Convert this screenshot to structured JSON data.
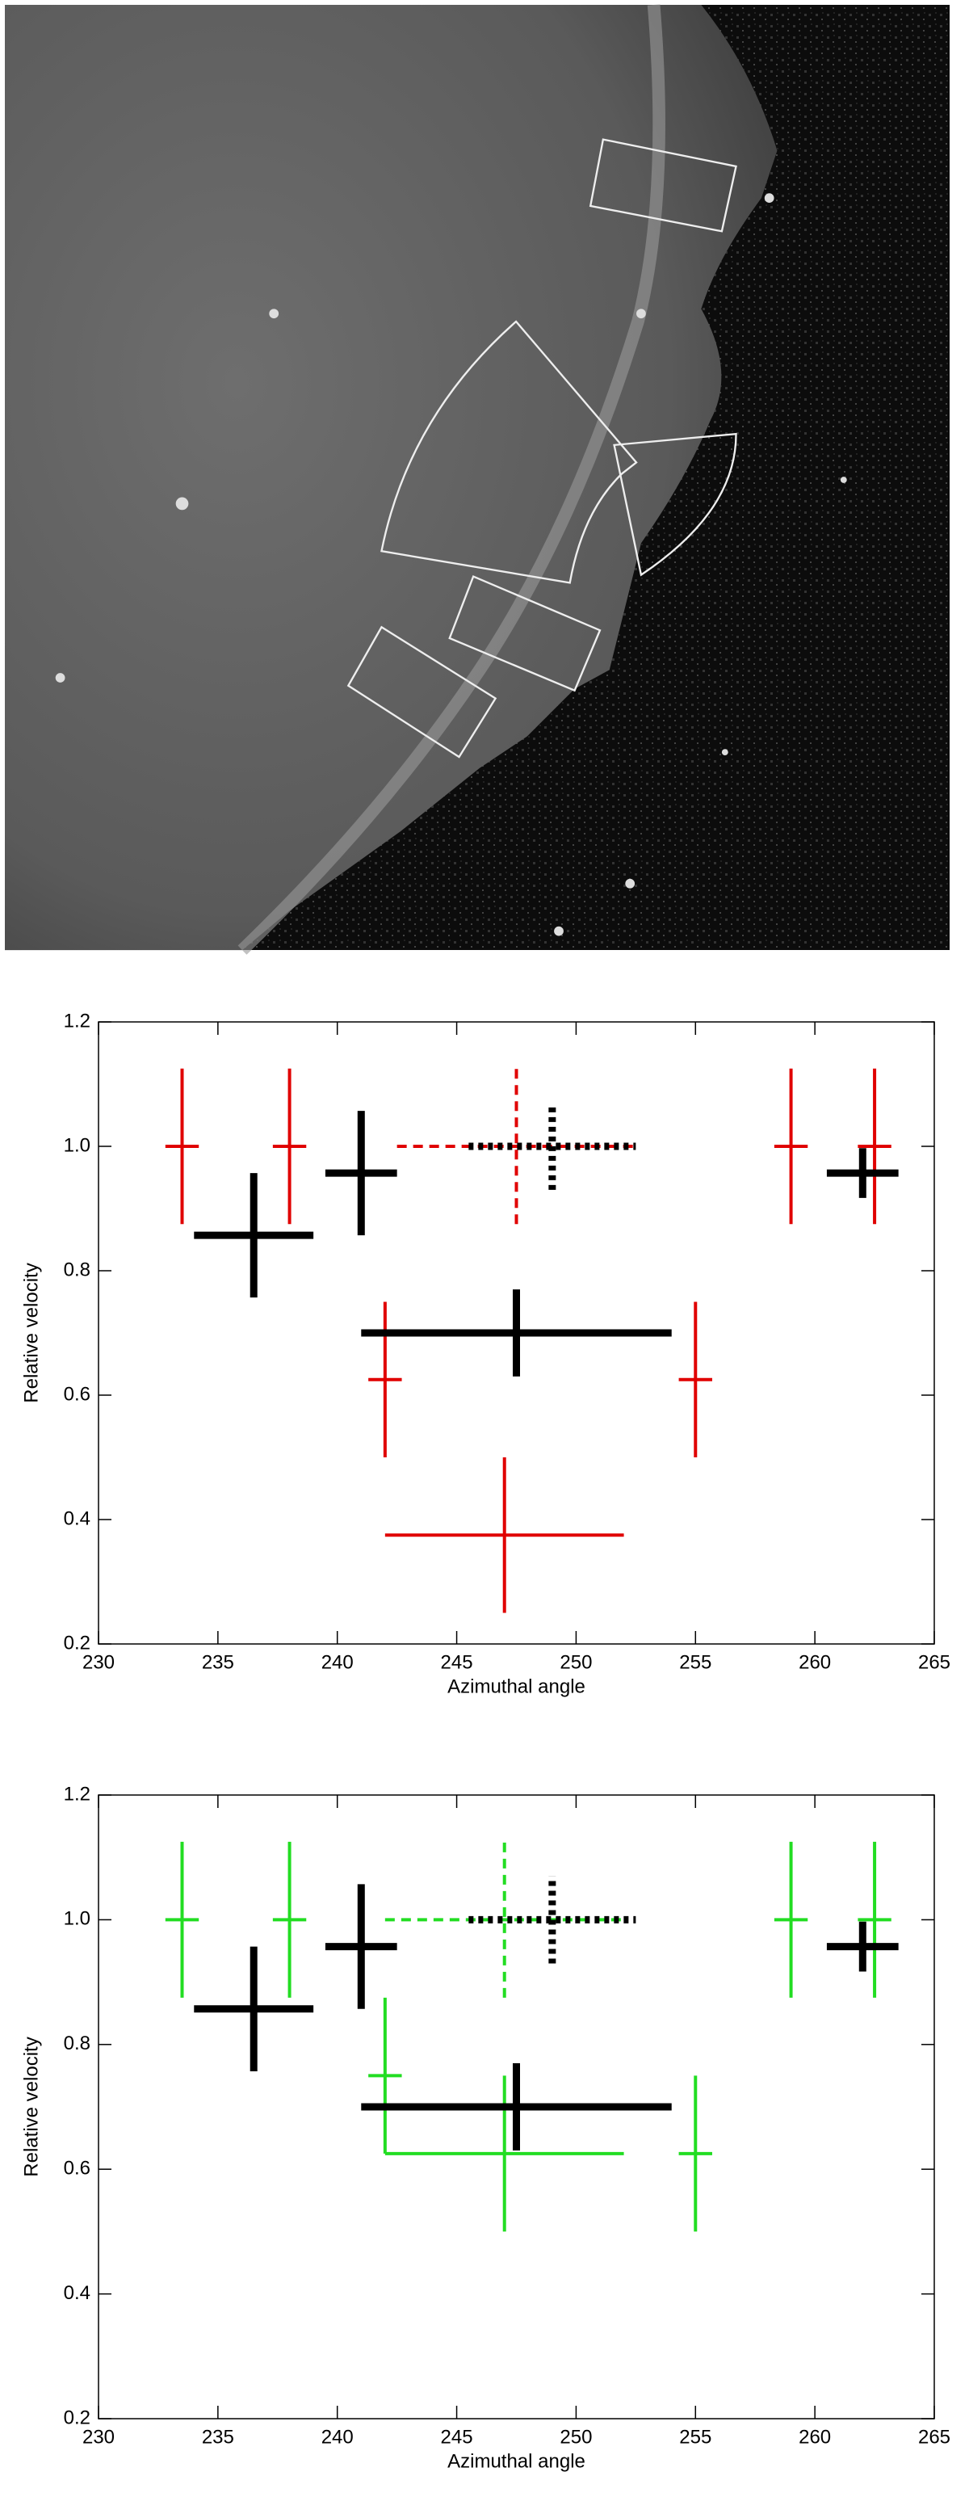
{
  "chart_data": [
    {
      "type": "errorbar",
      "xlabel": "Azimuthal angle",
      "ylabel": "Relative velocity",
      "xlim": [
        230,
        265
      ],
      "ylim": [
        0.2,
        1.2
      ],
      "xticks": [
        230,
        235,
        240,
        245,
        250,
        255,
        260,
        265
      ],
      "yticks": [
        0.2,
        0.4,
        0.6,
        0.8,
        {
          "value": 1,
          "label": "1.0"
        },
        {
          "value": 1.2,
          "label": "1.2"
        }
      ],
      "series": [
        {
          "color": "#e00000",
          "line_width": 4,
          "linestyle": "solid",
          "x": [
            233.5,
            238,
            242,
            255,
            259,
            262.5,
            247
          ],
          "values": [
            1.0,
            1.0,
            0.625,
            0.625,
            1.0,
            1.0,
            0.375
          ],
          "xerr": [
            0.7,
            0.7,
            0.7,
            0.7,
            0.7,
            0.7,
            5
          ],
          "yerr": [
            0.125,
            0.125,
            0.125,
            0.125,
            0.125,
            0.125,
            0.125
          ]
        },
        {
          "color": "#e00000",
          "line_width": 4,
          "linestyle": "dashed",
          "x": [
            247.5
          ],
          "values": [
            1.0
          ],
          "xerr": [
            5
          ],
          "yerr": [
            0.125
          ]
        },
        {
          "color": "#000000",
          "line_width": 9,
          "linestyle": "solid",
          "x": [
            236.5,
            241,
            247.5,
            262
          ],
          "values": [
            0.857,
            0.957,
            0.7,
            0.957
          ],
          "xerr": [
            2.5,
            1.5,
            6.5,
            1.5
          ],
          "yerr": [
            0.1,
            0.1,
            0.07,
            0.04
          ]
        },
        {
          "color": "#000000",
          "line_width": 9,
          "linestyle": "dotted",
          "x": [
            249
          ],
          "values": [
            1.0
          ],
          "xerr": [
            3.5
          ],
          "yerr": [
            0.07
          ]
        }
      ]
    },
    {
      "type": "errorbar",
      "xlabel": "Azimuthal angle",
      "ylabel": "Relative velocity",
      "xlim": [
        230,
        265
      ],
      "ylim": [
        0.2,
        1.2
      ],
      "xticks": [
        230,
        235,
        240,
        245,
        250,
        255,
        260,
        265
      ],
      "yticks": [
        0.2,
        0.4,
        0.6,
        0.8,
        {
          "value": 1,
          "label": "1.0"
        },
        {
          "value": 1.2,
          "label": "1.2"
        }
      ],
      "series": [
        {
          "color": "#22dd22",
          "line_width": 4,
          "linestyle": "solid",
          "x": [
            233.5,
            238,
            242,
            255,
            259,
            262.5,
            247
          ],
          "values": [
            1.0,
            1.0,
            0.75,
            0.625,
            1.0,
            1.0,
            0.625
          ],
          "xerr": [
            0.7,
            0.7,
            0.7,
            0.7,
            0.7,
            0.7,
            5
          ],
          "yerr": [
            0.125,
            0.125,
            0.125,
            0.125,
            0.125,
            0.125,
            0.125
          ]
        },
        {
          "color": "#22dd22",
          "line_width": 4,
          "linestyle": "dashed",
          "x": [
            247
          ],
          "values": [
            1.0
          ],
          "xerr": [
            5
          ],
          "yerr": [
            0.125
          ]
        },
        {
          "color": "#000000",
          "line_width": 9,
          "linestyle": "solid",
          "x": [
            236.5,
            241,
            247.5,
            262
          ],
          "values": [
            0.857,
            0.957,
            0.7,
            0.957
          ],
          "xerr": [
            2.5,
            1.5,
            6.5,
            1.5
          ],
          "yerr": [
            0.1,
            0.1,
            0.07,
            0.04
          ]
        },
        {
          "color": "#000000",
          "line_width": 9,
          "linestyle": "dotted",
          "x": [
            249
          ],
          "values": [
            1.0
          ],
          "xerr": [
            3.5
          ],
          "yerr": [
            0.07
          ]
        }
      ]
    }
  ]
}
